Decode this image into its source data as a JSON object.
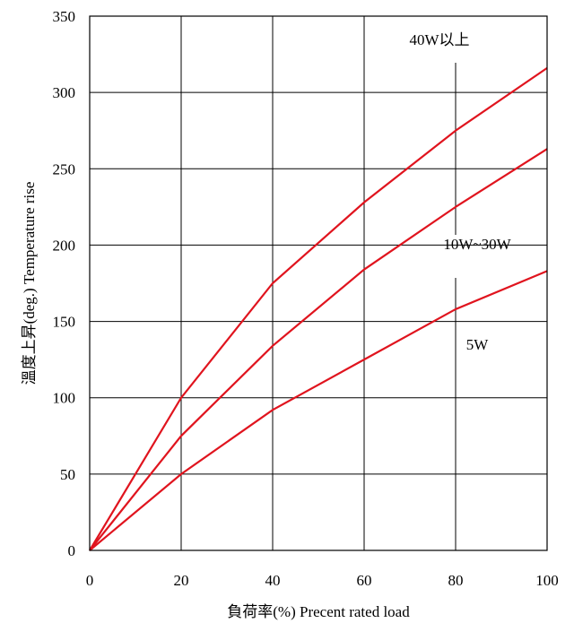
{
  "chart_data": {
    "type": "line",
    "title": "",
    "xlabel": "負荷率(%) Precent rated load",
    "ylabel": "溫度上昇(deg.) Temperature rise",
    "xlim": [
      0,
      100
    ],
    "ylim": [
      0,
      350
    ],
    "xticks": [
      0,
      20,
      40,
      60,
      80,
      100
    ],
    "yticks": [
      0,
      50,
      100,
      150,
      200,
      250,
      300,
      350
    ],
    "grid": true,
    "legend": "none",
    "series_color": "#e0141e",
    "series": [
      {
        "name": "40W以上",
        "x": [
          0,
          20,
          40,
          60,
          80,
          100
        ],
        "y": [
          0,
          100,
          175,
          228,
          275,
          316
        ]
      },
      {
        "name": "10W~30W",
        "x": [
          0,
          20,
          40,
          60,
          80,
          100
        ],
        "y": [
          0,
          75,
          134,
          184,
          225,
          263
        ]
      },
      {
        "name": "5W",
        "x": [
          0,
          20,
          40,
          60,
          80,
          100
        ],
        "y": [
          0,
          50,
          92,
          125,
          158,
          183
        ]
      }
    ]
  }
}
